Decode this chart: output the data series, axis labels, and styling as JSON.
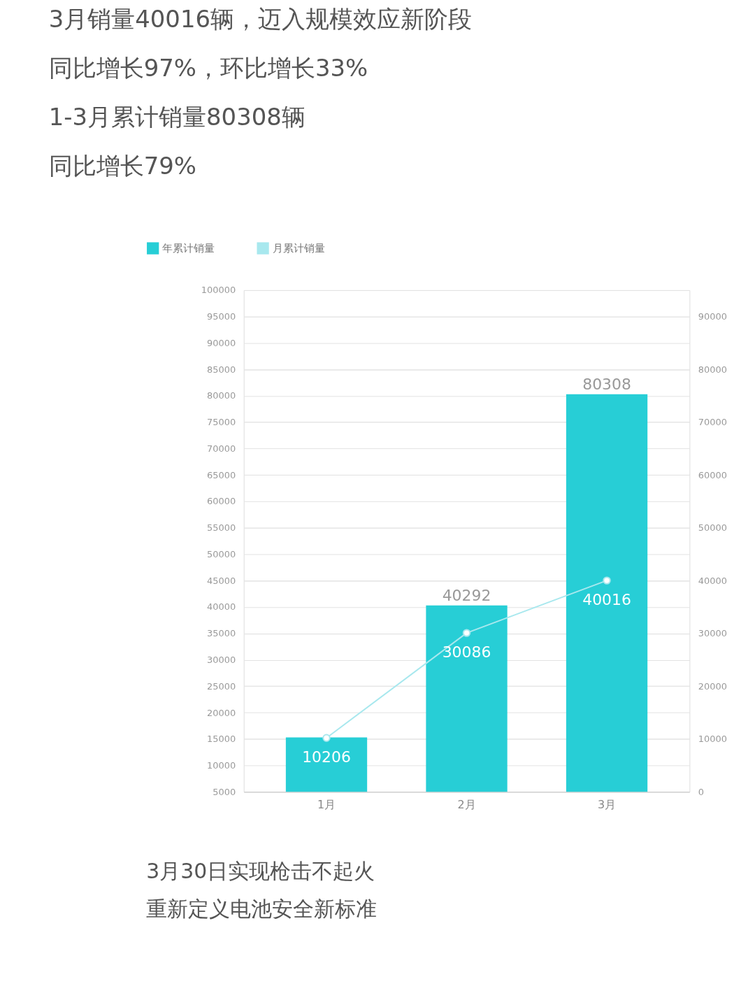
{
  "chart_data": {
    "type": "bar",
    "title": [
      "3月销量40016辆，迈入规模效应新阶段",
      "同比增长97%，环比增长33%",
      "1-3月累计销量80308辆",
      "同比增长79%"
    ],
    "categories": [
      "1月",
      "2月",
      "3月"
    ],
    "series": [
      {
        "name": "年累计销量",
        "color": "#27ced6",
        "values": [
          15300,
          40292,
          80308
        ],
        "value_labels": [
          null,
          "40292",
          "80308"
        ]
      },
      {
        "name": "月累计销量",
        "type": "line",
        "axis": "y2",
        "color": "#a8e8ee",
        "marker": "circle",
        "values": [
          10206,
          30086,
          40016
        ],
        "value_labels": [
          "10206",
          "30086",
          "40016"
        ]
      }
    ],
    "ylim": [
      5000,
      100000
    ],
    "yticks": [
      5000,
      10000,
      15000,
      20000,
      25000,
      30000,
      35000,
      40000,
      45000,
      50000,
      55000,
      60000,
      65000,
      70000,
      75000,
      80000,
      85000,
      90000,
      95000,
      100000
    ],
    "y2lim": [
      0,
      95000
    ],
    "y2ticks": [
      0,
      10000,
      20000,
      30000,
      40000,
      50000,
      60000,
      70000,
      80000,
      90000
    ],
    "grid": "y",
    "legend": "top left",
    "annotations": [
      "3月30日实现枪击不起火",
      "重新定义电池安全新标准"
    ]
  }
}
